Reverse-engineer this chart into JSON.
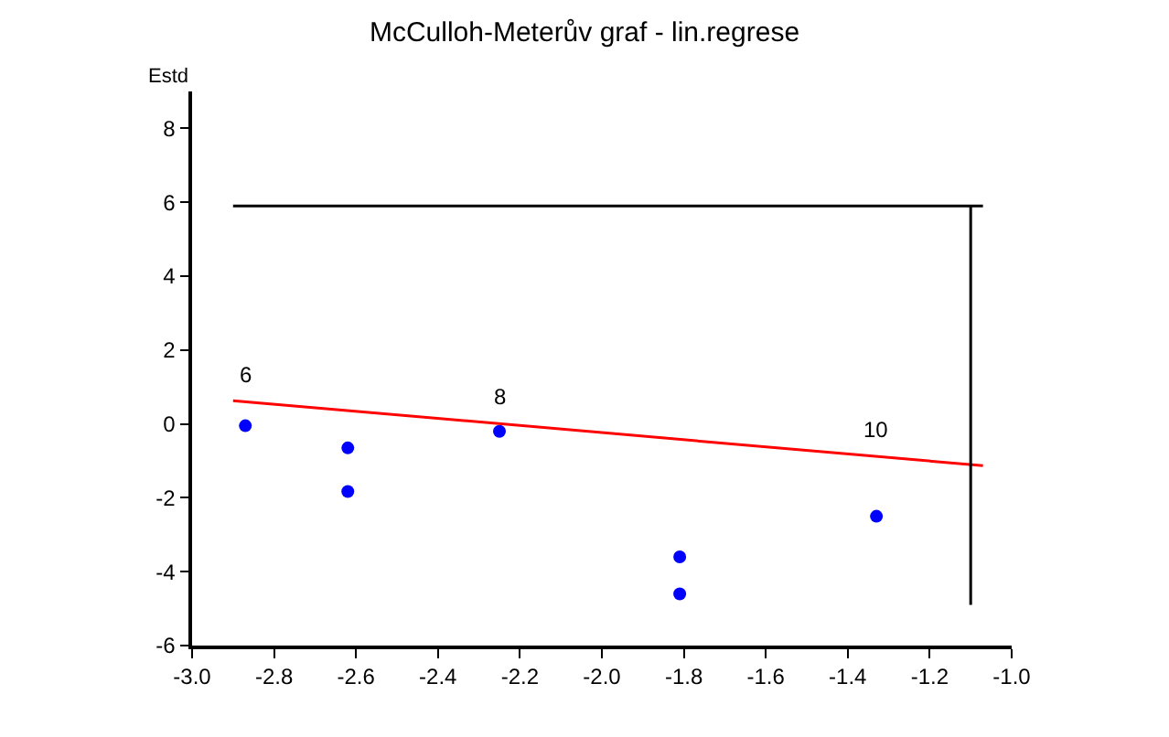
{
  "chart_data": {
    "type": "scatter",
    "title": "McCulloh-Meterův graf - lin.regrese",
    "ylabel": "Estd",
    "xlim": [
      -3.0,
      -1.0
    ],
    "xticks": [
      {
        "value": -3.0,
        "label": "-3.0"
      },
      -2.8,
      -2.6,
      -2.4,
      -2.2,
      {
        "value": -2.0,
        "label": "-2.0"
      },
      -1.8,
      -1.6,
      -1.4,
      -1.2,
      {
        "value": -1.0,
        "label": "-1.0"
      }
    ],
    "ylim": [
      -6,
      9
    ],
    "yticks": [
      -6,
      -4,
      -2,
      0,
      2,
      4,
      6,
      8
    ],
    "series": [
      {
        "color": "#0000ff",
        "marker": "circle",
        "x": [
          -2.87,
          -2.62,
          -2.62,
          -2.25,
          -1.81,
          -1.81,
          -1.33
        ],
        "values": [
          -0.05,
          -0.65,
          -1.83,
          -0.2,
          -3.6,
          -4.6,
          -2.5
        ]
      },
      {
        "type": "line",
        "color": "#ff0000",
        "marker": "none",
        "x": [
          -2.9,
          -1.07
        ],
        "values": [
          0.63,
          -1.13
        ]
      },
      {
        "type": "line",
        "color": "#000000",
        "marker": "none",
        "x": [
          -2.9,
          -1.07
        ],
        "values": [
          5.9,
          5.9
        ]
      },
      {
        "type": "line",
        "color": "#000000",
        "marker": "none",
        "x": [
          -1.1,
          -1.1
        ],
        "values": [
          5.9,
          -4.9
        ]
      }
    ],
    "annotations": [
      {
        "text": "6",
        "x": -2.87,
        "y": 0.6
      },
      {
        "text": "8",
        "x": -2.25,
        "y": 0.0
      },
      {
        "text": "10",
        "x": -1.33,
        "y": -0.88
      }
    ]
  }
}
